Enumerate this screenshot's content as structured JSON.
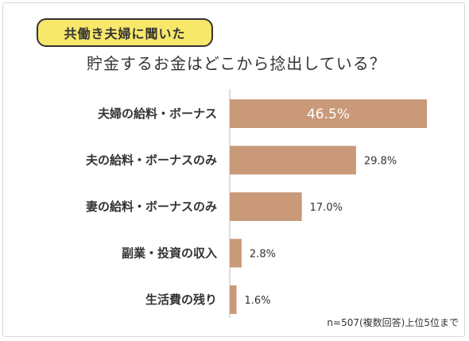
{
  "header": {
    "tag_label": "共働き夫婦に聞いた",
    "title": "貯金するお金はどこから捻出している？"
  },
  "footnote": "n=507(複数回答)上位5位まで",
  "colors": {
    "bar": "#c9997a",
    "tag_bg": "#f7e76b",
    "axis": "#bbbbbb"
  },
  "chart_data": {
    "type": "bar",
    "orientation": "horizontal",
    "categories": [
      "夫婦の給料・ボーナス",
      "夫の給料・ボーナスのみ",
      "妻の給料・ボーナスのみ",
      "副業・投資の収入",
      "生活費の残り"
    ],
    "values": [
      46.5,
      29.8,
      17.0,
      2.8,
      1.6
    ],
    "value_labels": [
      "46.5%",
      "29.8%",
      "17.0%",
      "2.8%",
      "1.6%"
    ],
    "xlim": [
      0,
      50
    ],
    "grid": false,
    "legend": "none"
  }
}
